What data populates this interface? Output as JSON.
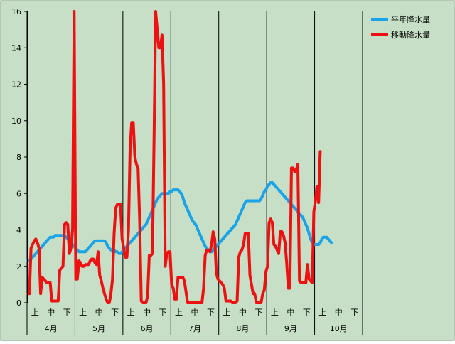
{
  "chart_data": {
    "type": "line",
    "title": "",
    "xlabel": "",
    "ylabel": "",
    "ylim": [
      0,
      16
    ],
    "yticks": [
      "0",
      "2",
      "4",
      "6",
      "8",
      "10",
      "12",
      "14",
      "16"
    ],
    "grid": "vertical-month-separators",
    "legend_position": "top-right",
    "months": [
      "4月",
      "5月",
      "6月",
      "7月",
      "8月",
      "9月",
      "10月"
    ],
    "periods": [
      "上",
      "中",
      "下"
    ],
    "x_points_per_month": 30,
    "series": [
      {
        "name": "平年降水量",
        "color": "#1aa3e6",
        "values": [
          2.3,
          2.3,
          2.4,
          2.5,
          2.6,
          2.7,
          2.8,
          2.9,
          3.0,
          3.1,
          3.2,
          3.3,
          3.4,
          3.5,
          3.6,
          3.6,
          3.6,
          3.7,
          3.7,
          3.7,
          3.7,
          3.7,
          3.7,
          3.7,
          3.6,
          3.5,
          3.4,
          3.3,
          3.2,
          3.1,
          3.0,
          2.9,
          2.8,
          2.8,
          2.8,
          2.8,
          2.8,
          2.9,
          3.0,
          3.1,
          3.2,
          3.3,
          3.4,
          3.4,
          3.4,
          3.4,
          3.4,
          3.4,
          3.4,
          3.3,
          3.1,
          3.0,
          2.9,
          2.9,
          2.9,
          2.8,
          2.8,
          2.7,
          2.7,
          2.8,
          2.9,
          3.0,
          3.1,
          3.2,
          3.3,
          3.4,
          3.5,
          3.6,
          3.7,
          3.8,
          3.9,
          4.0,
          4.1,
          4.2,
          4.3,
          4.5,
          4.7,
          4.9,
          5.1,
          5.3,
          5.5,
          5.7,
          5.8,
          5.9,
          6.0,
          6.0,
          6.0,
          6.0,
          6.0,
          6.1,
          6.1,
          6.2,
          6.2,
          6.2,
          6.2,
          6.1,
          6.0,
          5.8,
          5.5,
          5.3,
          5.1,
          4.9,
          4.7,
          4.5,
          4.4,
          4.3,
          4.1,
          3.9,
          3.7,
          3.5,
          3.3,
          3.1,
          3.0,
          2.9,
          2.8,
          2.8,
          2.9,
          3.0,
          3.1,
          3.2,
          3.3,
          3.4,
          3.5,
          3.6,
          3.7,
          3.8,
          3.9,
          4.0,
          4.1,
          4.2,
          4.3,
          4.5,
          4.7,
          4.9,
          5.1,
          5.3,
          5.5,
          5.6,
          5.6,
          5.6,
          5.6,
          5.6,
          5.6,
          5.6,
          5.6,
          5.6,
          5.7,
          5.9,
          6.1,
          6.2,
          6.4,
          6.5,
          6.6,
          6.6,
          6.5,
          6.4,
          6.3,
          6.2,
          6.1,
          6.0,
          5.9,
          5.8,
          5.7,
          5.6,
          5.5,
          5.4,
          5.3,
          5.2,
          5.1,
          5.0,
          4.9,
          4.8,
          4.7,
          4.5,
          4.3,
          4.1,
          3.8,
          3.5,
          3.3,
          3.2,
          3.2,
          3.2,
          3.2,
          3.3,
          3.5,
          3.6,
          3.6,
          3.6,
          3.5,
          3.4,
          3.3
        ]
      },
      {
        "name": "移動降水量",
        "color": "#ee1111",
        "values": [
          0.5,
          0.5,
          3.0,
          3.2,
          3.4,
          3.5,
          3.3,
          3.0,
          0.5,
          1.4,
          1.3,
          1.2,
          1.1,
          1.1,
          1.1,
          0.1,
          0.1,
          0.1,
          0.1,
          0.1,
          1.8,
          1.9,
          2.0,
          4.3,
          4.4,
          4.3,
          2.7,
          3.0,
          4.0,
          16.0,
          1.3,
          1.3,
          2.3,
          2.2,
          2.0,
          2.0,
          2.1,
          2.1,
          2.1,
          2.3,
          2.4,
          2.4,
          2.2,
          2.1,
          2.8,
          1.5,
          1.2,
          0.8,
          0.5,
          0.2,
          0.0,
          0.0,
          0.5,
          1.3,
          3.8,
          5.2,
          5.4,
          5.4,
          5.4,
          3.5,
          3.0,
          2.5,
          2.5,
          4.0,
          8.5,
          9.9,
          9.9,
          8.0,
          7.6,
          7.4,
          4.5,
          0.1,
          0.0,
          0.0,
          0.0,
          0.4,
          2.6,
          2.6,
          2.7,
          9.0,
          16.0,
          15.0,
          14.0,
          14.0,
          14.7,
          12.0,
          2.0,
          2.7,
          2.8,
          2.8,
          1.0,
          0.8,
          0.2,
          0.2,
          1.4,
          1.4,
          1.4,
          1.4,
          1.2,
          0.6,
          0.0,
          0.0,
          0.0,
          0.0,
          0.0,
          0.0,
          0.0,
          0.0,
          0.0,
          0.0,
          0.8,
          2.6,
          2.9,
          2.9,
          2.8,
          3.2,
          3.9,
          3.5,
          1.6,
          1.3,
          1.2,
          1.1,
          1.0,
          0.8,
          0.1,
          0.1,
          0.1,
          0.1,
          0.0,
          0.0,
          0.0,
          0.1,
          2.5,
          2.8,
          2.9,
          3.2,
          3.8,
          3.8,
          3.8,
          1.5,
          1.0,
          0.5,
          0.5,
          0.0,
          0.0,
          0.0,
          0.0,
          0.5,
          0.7,
          1.7,
          2.0,
          4.4,
          4.6,
          4.4,
          3.2,
          3.1,
          2.9,
          2.7,
          3.9,
          3.9,
          3.7,
          3.3,
          2.2,
          0.8,
          0.8,
          7.4,
          7.4,
          7.2,
          7.3,
          7.6,
          1.2,
          1.1,
          1.1,
          1.1,
          1.1,
          2.1,
          1.3,
          1.2,
          1.1,
          5.0,
          5.6,
          6.4,
          5.5,
          8.3
        ]
      }
    ]
  }
}
